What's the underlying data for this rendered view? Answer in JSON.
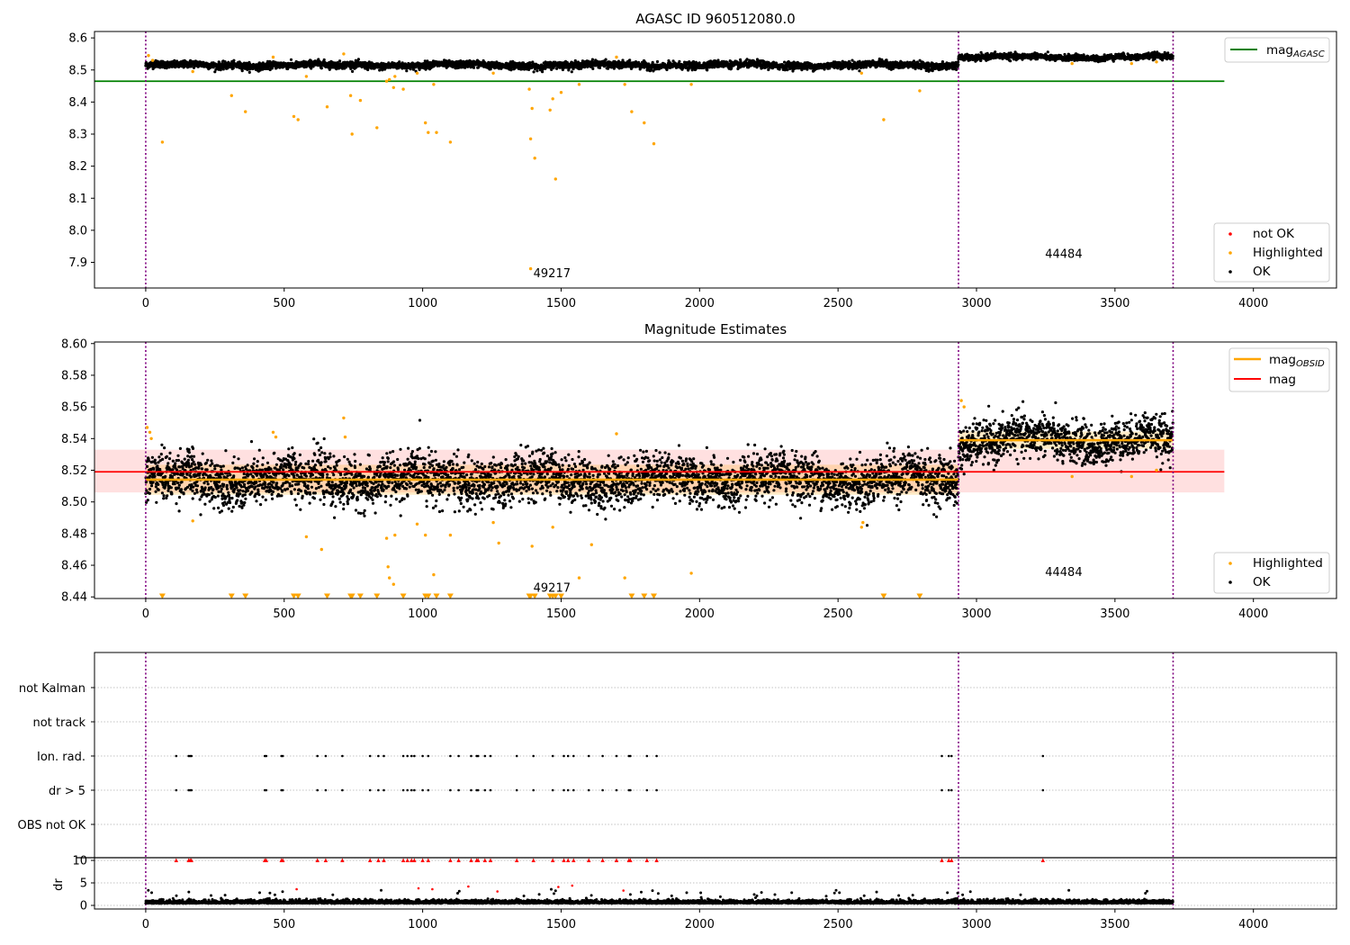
{
  "figure": {
    "panels": [
      {
        "title": "AGASC ID 960512080.0",
        "legend_top": {
          "items": [
            {
              "label": "mag",
              "sub": "AGASC",
              "color": "#008000"
            }
          ]
        },
        "legend_bottom": {
          "items": [
            {
              "label": "not OK",
              "color": "#ff0000"
            },
            {
              "label": "Highlighted",
              "color": "#ffa500"
            },
            {
              "label": "OK",
              "color": "#000000"
            }
          ]
        },
        "annotations": [
          "49217",
          "44484"
        ]
      },
      {
        "title": "Magnitude Estimates",
        "legend_top": {
          "items": [
            {
              "label": "mag",
              "sub": "OBSID",
              "color": "#ffa500"
            },
            {
              "label": "mag",
              "sub": "",
              "color": "#ff0000"
            }
          ]
        },
        "legend_bottom": {
          "items": [
            {
              "label": "Highlighted",
              "color": "#ffa500"
            },
            {
              "label": "OK",
              "color": "#000000"
            }
          ]
        },
        "annotations": [
          "49217",
          "44484"
        ]
      },
      {
        "title": "",
        "flag_labels": [
          "not Kalman",
          "not track",
          "Ion. rad.",
          "dr > 5",
          "OBS not OK"
        ],
        "dr_label": "dr"
      }
    ]
  },
  "chart_data": [
    {
      "type": "scatter",
      "title": "AGASC ID 960512080.0",
      "xlim": [
        -185,
        4300
      ],
      "ylim": [
        7.82,
        8.62
      ],
      "xticks": [
        0,
        500,
        1000,
        1500,
        2000,
        2500,
        3000,
        3500,
        4000
      ],
      "yticks": [
        7.9,
        8.0,
        8.1,
        8.2,
        8.3,
        8.4,
        8.5,
        8.6
      ],
      "vlines": [
        0,
        2935,
        3710
      ],
      "mag_agasc": 8.465,
      "mag_agasc_xrange": [
        -185,
        3895
      ],
      "annotations": [
        {
          "text": "49217",
          "x": 1467,
          "y": 7.865
        },
        {
          "text": "44484",
          "x": 3315,
          "y": 7.925
        }
      ],
      "series": [
        {
          "name": "OK",
          "segments": [
            {
              "x": [
                0,
                2935
              ],
              "level": 8.515,
              "spread": 0.012
            },
            {
              "x": [
                2935,
                3710
              ],
              "level": 8.54,
              "spread": 0.01
            }
          ]
        },
        {
          "name": "Highlighted",
          "points": [
            [
              10,
              8.545
            ],
            [
              25,
              8.53
            ],
            [
              60,
              8.275
            ],
            [
              170,
              8.495
            ],
            [
              310,
              8.42
            ],
            [
              360,
              8.37
            ],
            [
              460,
              8.54
            ],
            [
              535,
              8.355
            ],
            [
              550,
              8.345
            ],
            [
              580,
              8.48
            ],
            [
              655,
              8.385
            ],
            [
              715,
              8.55
            ],
            [
              740,
              8.42
            ],
            [
              745,
              8.3
            ],
            [
              775,
              8.405
            ],
            [
              835,
              8.32
            ],
            [
              870,
              8.465
            ],
            [
              880,
              8.47
            ],
            [
              895,
              8.445
            ],
            [
              900,
              8.48
            ],
            [
              930,
              8.44
            ],
            [
              980,
              8.49
            ],
            [
              1010,
              8.335
            ],
            [
              1020,
              8.305
            ],
            [
              1040,
              8.455
            ],
            [
              1050,
              8.305
            ],
            [
              1100,
              8.275
            ],
            [
              1255,
              8.49
            ],
            [
              1385,
              8.44
            ],
            [
              1390,
              8.285
            ],
            [
              1395,
              8.38
            ],
            [
              1405,
              8.225
            ],
            [
              1460,
              8.375
            ],
            [
              1470,
              8.41
            ],
            [
              1480,
              8.16
            ],
            [
              1500,
              8.43
            ],
            [
              1565,
              8.455
            ],
            [
              1700,
              8.54
            ],
            [
              1730,
              8.455
            ],
            [
              1755,
              8.37
            ],
            [
              1800,
              8.335
            ],
            [
              1835,
              8.27
            ],
            [
              1970,
              8.455
            ],
            [
              2585,
              8.49
            ],
            [
              2665,
              8.345
            ],
            [
              2795,
              8.435
            ],
            [
              3345,
              8.52
            ],
            [
              3560,
              8.52
            ],
            [
              3650,
              8.525
            ]
          ]
        },
        {
          "name": "not OK",
          "points": [
            [
              1390,
              7.88
            ]
          ]
        }
      ]
    },
    {
      "type": "scatter",
      "title": "Magnitude Estimates",
      "xlim": [
        -185,
        4300
      ],
      "ylim": [
        8.439,
        8.601
      ],
      "xticks": [
        0,
        500,
        1000,
        1500,
        2000,
        2500,
        3000,
        3500,
        4000
      ],
      "yticks": [
        8.44,
        8.46,
        8.48,
        8.5,
        8.52,
        8.54,
        8.56,
        8.58,
        8.6
      ],
      "vlines": [
        0,
        2935,
        3710
      ],
      "mag": 8.519,
      "mag_band": [
        8.506,
        8.533
      ],
      "mag_xrange": [
        -185,
        3895
      ],
      "mag_obsid": [
        {
          "x": [
            0,
            2935
          ],
          "y": 8.514,
          "band": [
            8.5045,
            8.5235
          ]
        },
        {
          "x": [
            2935,
            3710
          ],
          "y": 8.539,
          "band": [
            8.5335,
            8.5445
          ]
        }
      ],
      "annotations": [
        {
          "text": "49217",
          "x": 1467,
          "y": 8.4455
        },
        {
          "text": "44484",
          "x": 3315,
          "y": 8.4555
        }
      ],
      "series": [
        {
          "name": "OK",
          "segments": [
            {
              "x": [
                0,
                2935
              ],
              "level": 8.514,
              "spread": 0.0075
            },
            {
              "x": [
                2935,
                3710
              ],
              "level": 8.539,
              "spread": 0.0065
            }
          ]
        },
        {
          "name": "Highlighted",
          "points": [
            [
              5,
              8.547
            ],
            [
              15,
              8.544
            ],
            [
              20,
              8.54
            ],
            [
              170,
              8.488
            ],
            [
              460,
              8.544
            ],
            [
              470,
              8.541
            ],
            [
              580,
              8.478
            ],
            [
              635,
              8.47
            ],
            [
              715,
              8.553
            ],
            [
              720,
              8.541
            ],
            [
              870,
              8.477
            ],
            [
              875,
              8.459
            ],
            [
              880,
              8.452
            ],
            [
              895,
              8.448
            ],
            [
              900,
              8.479
            ],
            [
              980,
              8.486
            ],
            [
              1010,
              8.479
            ],
            [
              1040,
              8.454
            ],
            [
              1100,
              8.479
            ],
            [
              1255,
              8.487
            ],
            [
              1275,
              8.474
            ],
            [
              1395,
              8.472
            ],
            [
              1470,
              8.484
            ],
            [
              1565,
              8.452
            ],
            [
              1610,
              8.473
            ],
            [
              1700,
              8.543
            ],
            [
              1730,
              8.452
            ],
            [
              1970,
              8.455
            ],
            [
              2585,
              8.484
            ],
            [
              2590,
              8.487
            ],
            [
              2945,
              8.564
            ],
            [
              2955,
              8.56
            ],
            [
              3345,
              8.516
            ],
            [
              3560,
              8.516
            ],
            [
              3650,
              8.52
            ]
          ]
        },
        {
          "name": "below_range_markers",
          "x": [
            60,
            310,
            360,
            535,
            550,
            655,
            740,
            745,
            775,
            835,
            930,
            1010,
            1020,
            1050,
            1100,
            1385,
            1390,
            1405,
            1460,
            1470,
            1480,
            1500,
            1755,
            1800,
            1835,
            2665,
            2795
          ]
        }
      ]
    },
    {
      "type": "scatter",
      "title": "",
      "xlim": [
        -185,
        4300
      ],
      "xticks": [
        0,
        500,
        1000,
        1500,
        2000,
        2500,
        3000,
        3500,
        4000
      ],
      "flag_categories": [
        "not Kalman",
        "not track",
        "Ion. rad.",
        "dr > 5",
        "OBS not OK"
      ],
      "vlines": [
        0,
        2935,
        3710
      ],
      "flag_points_x": [
        110,
        155,
        160,
        165,
        430,
        435,
        490,
        495,
        620,
        650,
        710,
        810,
        840,
        860,
        930,
        945,
        960,
        970,
        1000,
        1020,
        1100,
        1130,
        1175,
        1195,
        1200,
        1225,
        1245,
        1340,
        1400,
        1470,
        1510,
        1525,
        1545,
        1600,
        1650,
        1700,
        1745,
        1750,
        1810,
        1845,
        2875,
        2900,
        2910,
        3240
      ],
      "dr": {
        "ylim": [
          -0.8,
          10.6
        ],
        "yticks": [
          0,
          5,
          10
        ],
        "clip_value": 10,
        "clipped_x": [
          110,
          155,
          160,
          165,
          430,
          435,
          490,
          495,
          620,
          650,
          710,
          810,
          840,
          860,
          930,
          945,
          960,
          970,
          1000,
          1020,
          1100,
          1130,
          1175,
          1195,
          1200,
          1225,
          1245,
          1340,
          1400,
          1470,
          1510,
          1525,
          1545,
          1600,
          1650,
          1700,
          1745,
          1750,
          1810,
          1845,
          2875,
          2900,
          2910,
          3240
        ],
        "red_points": [
          [
            545,
            3.6
          ],
          [
            985,
            3.8
          ],
          [
            1035,
            3.6
          ],
          [
            1165,
            4.2
          ],
          [
            1270,
            3.1
          ],
          [
            1490,
            4.1
          ],
          [
            1540,
            4.4
          ],
          [
            1725,
            3.3
          ]
        ],
        "baseline": {
          "x": [
            0,
            3710
          ],
          "level": 0.45,
          "spread": 0.35
        }
      }
    }
  ]
}
